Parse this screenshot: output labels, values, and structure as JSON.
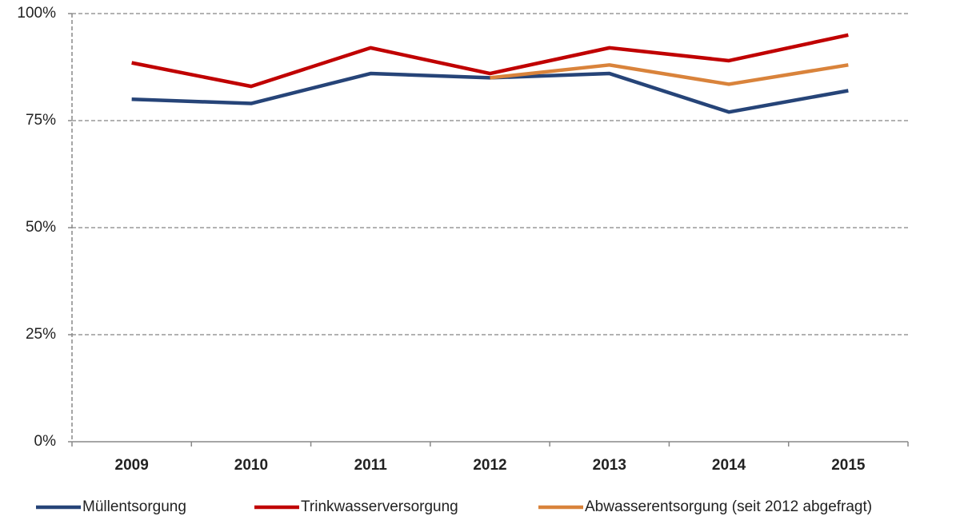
{
  "chart_data": {
    "type": "line",
    "categories": [
      "2009",
      "2010",
      "2011",
      "2012",
      "2013",
      "2014",
      "2015"
    ],
    "series": [
      {
        "name": "Müllentsorgung",
        "color": "#264478",
        "values": [
          80,
          79,
          86,
          85,
          86,
          77,
          82
        ]
      },
      {
        "name": "Trinkwasserversorgung",
        "color": "#c00000",
        "values": [
          88.5,
          83,
          92,
          86,
          92,
          89,
          95
        ]
      },
      {
        "name": "Abwasserentsorgung (seit 2012 abgefragt)",
        "color": "#d9833b",
        "values": [
          null,
          null,
          null,
          85,
          88,
          83.5,
          88
        ]
      }
    ],
    "ylim": [
      0,
      100
    ],
    "yticks": [
      {
        "value": 0,
        "label": "0%"
      },
      {
        "value": 25,
        "label": "25%"
      },
      {
        "value": 50,
        "label": "50%"
      },
      {
        "value": 75,
        "label": "75%"
      },
      {
        "value": 100,
        "label": "100%"
      }
    ],
    "grid": true,
    "legend": "bottom"
  }
}
